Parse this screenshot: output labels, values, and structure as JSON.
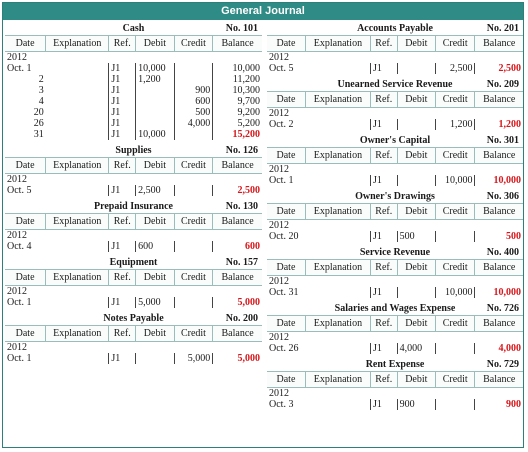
{
  "journal_title": "General Journal",
  "headers": [
    "Date",
    "Explanation",
    "Ref.",
    "Debit",
    "Credit",
    "Balance"
  ],
  "left_accounts": [
    {
      "name": "Cash",
      "number": "No. 101",
      "rows": [
        {
          "date": "2012",
          "ref": "",
          "debit": "",
          "credit": "",
          "balance": ""
        },
        {
          "date": "Oct. 1",
          "ref": "J1",
          "debit": "10,000",
          "credit": "",
          "balance": "10,000"
        },
        {
          "date": "2",
          "ref": "J1",
          "debit": "1,200",
          "credit": "",
          "balance": "11,200"
        },
        {
          "date": "3",
          "ref": "J1",
          "debit": "",
          "credit": "900",
          "balance": "10,300"
        },
        {
          "date": "4",
          "ref": "J1",
          "debit": "",
          "credit": "600",
          "balance": "9,700"
        },
        {
          "date": "20",
          "ref": "J1",
          "debit": "",
          "credit": "500",
          "balance": "9,200"
        },
        {
          "date": "26",
          "ref": "J1",
          "debit": "",
          "credit": "4,000",
          "balance": "5,200"
        },
        {
          "date": "31",
          "ref": "J1",
          "debit": "10,000",
          "credit": "",
          "balance": "15,200",
          "final": true
        }
      ]
    },
    {
      "name": "Supplies",
      "number": "No. 126",
      "rows": [
        {
          "date": "2012",
          "ref": "",
          "debit": "",
          "credit": "",
          "balance": ""
        },
        {
          "date": "Oct. 5",
          "ref": "J1",
          "debit": "2,500",
          "credit": "",
          "balance": "2,500",
          "final": true
        }
      ]
    },
    {
      "name": "Prepaid Insurance",
      "number": "No. 130",
      "rows": [
        {
          "date": "2012",
          "ref": "",
          "debit": "",
          "credit": "",
          "balance": ""
        },
        {
          "date": "Oct. 4",
          "ref": "J1",
          "debit": "600",
          "credit": "",
          "balance": "600",
          "final": true
        }
      ]
    },
    {
      "name": "Equipment",
      "number": "No. 157",
      "rows": [
        {
          "date": "2012",
          "ref": "",
          "debit": "",
          "credit": "",
          "balance": ""
        },
        {
          "date": "Oct. 1",
          "ref": "J1",
          "debit": "5,000",
          "credit": "",
          "balance": "5,000",
          "final": true
        }
      ]
    },
    {
      "name": "Notes Payable",
      "number": "No. 200",
      "rows": [
        {
          "date": "2012",
          "ref": "",
          "debit": "",
          "credit": "",
          "balance": ""
        },
        {
          "date": "Oct. 1",
          "ref": "J1",
          "debit": "",
          "credit": "5,000",
          "balance": "5,000",
          "final": true
        }
      ]
    }
  ],
  "right_accounts": [
    {
      "name": "Accounts Payable",
      "number": "No. 201",
      "rows": [
        {
          "date": "2012",
          "ref": "",
          "debit": "",
          "credit": "",
          "balance": ""
        },
        {
          "date": "Oct. 5",
          "ref": "J1",
          "debit": "",
          "credit": "2,500",
          "balance": "2,500",
          "final": true
        }
      ]
    },
    {
      "name": "Unearned Service Revenue",
      "number": "No. 209",
      "rows": [
        {
          "date": "2012",
          "ref": "",
          "debit": "",
          "credit": "",
          "balance": ""
        },
        {
          "date": "Oct. 2",
          "ref": "J1",
          "debit": "",
          "credit": "1,200",
          "balance": "1,200",
          "final": true
        }
      ]
    },
    {
      "name": "Owner's Capital",
      "number": "No. 301",
      "rows": [
        {
          "date": "2012",
          "ref": "",
          "debit": "",
          "credit": "",
          "balance": ""
        },
        {
          "date": "Oct. 1",
          "ref": "J1",
          "debit": "",
          "credit": "10,000",
          "balance": "10,000",
          "final": true
        }
      ]
    },
    {
      "name": "Owner's Drawings",
      "number": "No. 306",
      "rows": [
        {
          "date": "2012",
          "ref": "",
          "debit": "",
          "credit": "",
          "balance": ""
        },
        {
          "date": "Oct. 20",
          "ref": "J1",
          "debit": "500",
          "credit": "",
          "balance": "500",
          "final": true
        }
      ]
    },
    {
      "name": "Service Revenue",
      "number": "No. 400",
      "rows": [
        {
          "date": "2012",
          "ref": "",
          "debit": "",
          "credit": "",
          "balance": ""
        },
        {
          "date": "Oct. 31",
          "ref": "J1",
          "debit": "",
          "credit": "10,000",
          "balance": "10,000",
          "final": true
        }
      ]
    },
    {
      "name": "Salaries and Wages Expense",
      "number": "No. 726",
      "rows": [
        {
          "date": "2012",
          "ref": "",
          "debit": "",
          "credit": "",
          "balance": ""
        },
        {
          "date": "Oct. 26",
          "ref": "J1",
          "debit": "4,000",
          "credit": "",
          "balance": "4,000",
          "final": true
        }
      ]
    },
    {
      "name": "Rent Expense",
      "number": "No. 729",
      "rows": [
        {
          "date": "2012",
          "ref": "",
          "debit": "",
          "credit": "",
          "balance": ""
        },
        {
          "date": "Oct. 3",
          "ref": "J1",
          "debit": "900",
          "credit": "",
          "balance": "900",
          "final": true
        }
      ]
    }
  ],
  "colors": {
    "banner": "#2e8b85",
    "final_balance": "#d8161b"
  }
}
